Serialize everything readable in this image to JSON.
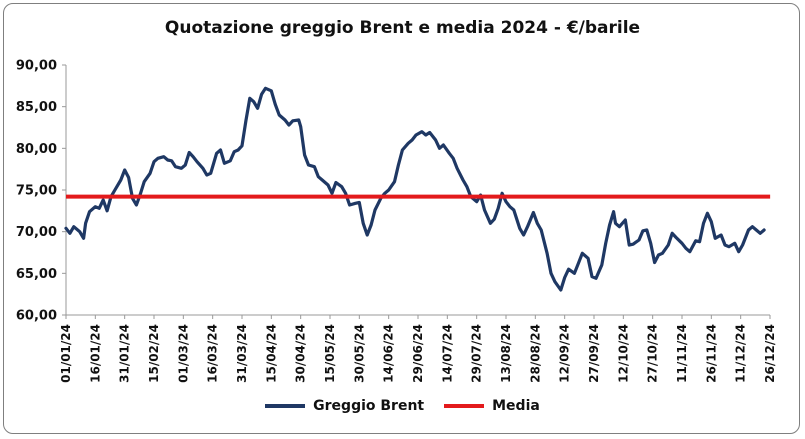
{
  "chart_data": {
    "type": "line",
    "title": "Quotazione greggio Brent e media 2024 - €/barile",
    "ylim": [
      60,
      90
    ],
    "yticks": [
      "60,00",
      "65,00",
      "70,00",
      "75,00",
      "80,00",
      "85,00",
      "90,00"
    ],
    "xticks": [
      "01/01/24",
      "16/01/24",
      "31/01/24",
      "15/02/24",
      "01/03/24",
      "16/03/24",
      "31/03/24",
      "15/04/24",
      "30/04/24",
      "15/05/24",
      "30/05/24",
      "14/06/24",
      "29/06/24",
      "14/07/24",
      "29/07/24",
      "13/08/24",
      "28/08/24",
      "12/09/24",
      "27/09/24",
      "12/10/24",
      "27/10/24",
      "11/11/24",
      "26/11/24",
      "11/12/24",
      "26/12/24"
    ],
    "series": [
      {
        "name": "Greggio Brent",
        "color": "#1f3864",
        "points": [
          [
            "01/01/24",
            70.4
          ],
          [
            "03/01/24",
            69.8
          ],
          [
            "05/01/24",
            70.6
          ],
          [
            "08/01/24",
            70.0
          ],
          [
            "10/01/24",
            69.2
          ],
          [
            "11/01/24",
            71.0
          ],
          [
            "13/01/24",
            72.4
          ],
          [
            "16/01/24",
            73.0
          ],
          [
            "18/01/24",
            72.8
          ],
          [
            "20/01/24",
            73.8
          ],
          [
            "22/01/24",
            72.5
          ],
          [
            "24/01/24",
            74.2
          ],
          [
            "26/01/24",
            75.0
          ],
          [
            "29/01/24",
            76.2
          ],
          [
            "31/01/24",
            77.4
          ],
          [
            "02/02/24",
            76.5
          ],
          [
            "04/02/24",
            74.0
          ],
          [
            "06/02/24",
            73.2
          ],
          [
            "08/02/24",
            74.5
          ],
          [
            "10/02/24",
            76.0
          ],
          [
            "13/02/24",
            77.0
          ],
          [
            "15/02/24",
            78.4
          ],
          [
            "17/02/24",
            78.8
          ],
          [
            "20/02/24",
            79.0
          ],
          [
            "22/02/24",
            78.6
          ],
          [
            "24/02/24",
            78.5
          ],
          [
            "26/02/24",
            77.8
          ],
          [
            "29/02/24",
            77.6
          ],
          [
            "02/03/24",
            78.0
          ],
          [
            "04/03/24",
            79.5
          ],
          [
            "06/03/24",
            79.0
          ],
          [
            "08/03/24",
            78.4
          ],
          [
            "11/03/24",
            77.6
          ],
          [
            "13/03/24",
            76.8
          ],
          [
            "15/03/24",
            77.0
          ],
          [
            "18/03/24",
            79.4
          ],
          [
            "20/03/24",
            79.8
          ],
          [
            "22/03/24",
            78.2
          ],
          [
            "25/03/24",
            78.5
          ],
          [
            "27/03/24",
            79.6
          ],
          [
            "29/03/24",
            79.8
          ],
          [
            "31/03/24",
            80.3
          ],
          [
            "02/04/24",
            83.3
          ],
          [
            "04/04/24",
            86.0
          ],
          [
            "06/04/24",
            85.6
          ],
          [
            "08/04/24",
            84.8
          ],
          [
            "10/04/24",
            86.5
          ],
          [
            "12/04/24",
            87.2
          ],
          [
            "15/04/24",
            86.9
          ],
          [
            "17/04/24",
            85.3
          ],
          [
            "19/04/24",
            84.0
          ],
          [
            "22/04/24",
            83.4
          ],
          [
            "24/04/24",
            82.8
          ],
          [
            "26/04/24",
            83.3
          ],
          [
            "29/04/24",
            83.4
          ],
          [
            "30/04/24",
            82.6
          ],
          [
            "02/05/24",
            79.2
          ],
          [
            "04/05/24",
            78.0
          ],
          [
            "07/05/24",
            77.8
          ],
          [
            "09/05/24",
            76.6
          ],
          [
            "11/05/24",
            76.2
          ],
          [
            "14/05/24",
            75.6
          ],
          [
            "16/05/24",
            74.6
          ],
          [
            "18/05/24",
            75.9
          ],
          [
            "21/05/24",
            75.4
          ],
          [
            "23/05/24",
            74.6
          ],
          [
            "25/05/24",
            73.2
          ],
          [
            "28/05/24",
            73.4
          ],
          [
            "30/05/24",
            73.5
          ],
          [
            "01/06/24",
            71.0
          ],
          [
            "03/06/24",
            69.6
          ],
          [
            "05/06/24",
            70.8
          ],
          [
            "07/06/24",
            72.6
          ],
          [
            "10/06/24",
            74.0
          ],
          [
            "12/06/24",
            74.6
          ],
          [
            "14/06/24",
            75.0
          ],
          [
            "17/06/24",
            76.0
          ],
          [
            "19/06/24",
            78.0
          ],
          [
            "21/06/24",
            79.8
          ],
          [
            "24/06/24",
            80.6
          ],
          [
            "26/06/24",
            81.0
          ],
          [
            "28/06/24",
            81.6
          ],
          [
            "01/07/24",
            82.0
          ],
          [
            "03/07/24",
            81.6
          ],
          [
            "05/07/24",
            81.9
          ],
          [
            "08/07/24",
            81.0
          ],
          [
            "10/07/24",
            80.0
          ],
          [
            "12/07/24",
            80.4
          ],
          [
            "15/07/24",
            79.4
          ],
          [
            "17/07/24",
            78.8
          ],
          [
            "19/07/24",
            77.6
          ],
          [
            "22/07/24",
            76.2
          ],
          [
            "24/07/24",
            75.4
          ],
          [
            "26/07/24",
            74.2
          ],
          [
            "29/07/24",
            73.6
          ],
          [
            "31/07/24",
            74.4
          ],
          [
            "02/08/24",
            72.6
          ],
          [
            "05/08/24",
            71.0
          ],
          [
            "07/08/24",
            71.5
          ],
          [
            "09/08/24",
            72.8
          ],
          [
            "11/08/24",
            74.6
          ],
          [
            "13/08/24",
            73.6
          ],
          [
            "15/08/24",
            73.0
          ],
          [
            "17/08/24",
            72.6
          ],
          [
            "20/08/24",
            70.4
          ],
          [
            "22/08/24",
            69.6
          ],
          [
            "24/08/24",
            70.6
          ],
          [
            "27/08/24",
            72.3
          ],
          [
            "29/08/24",
            71.0
          ],
          [
            "31/08/24",
            70.2
          ],
          [
            "03/09/24",
            67.4
          ],
          [
            "05/09/24",
            65.0
          ],
          [
            "07/09/24",
            64.0
          ],
          [
            "10/09/24",
            63.0
          ],
          [
            "12/09/24",
            64.5
          ],
          [
            "14/09/24",
            65.5
          ],
          [
            "17/09/24",
            65.0
          ],
          [
            "19/09/24",
            66.2
          ],
          [
            "21/09/24",
            67.4
          ],
          [
            "24/09/24",
            66.8
          ],
          [
            "26/09/24",
            64.6
          ],
          [
            "28/09/24",
            64.4
          ],
          [
            "01/10/24",
            66.0
          ],
          [
            "03/10/24",
            68.6
          ],
          [
            "05/10/24",
            70.8
          ],
          [
            "07/10/24",
            72.4
          ],
          [
            "08/10/24",
            71.0
          ],
          [
            "10/10/24",
            70.6
          ],
          [
            "13/10/24",
            71.4
          ],
          [
            "15/10/24",
            68.4
          ],
          [
            "17/10/24",
            68.5
          ],
          [
            "20/10/24",
            69.0
          ],
          [
            "22/10/24",
            70.1
          ],
          [
            "24/10/24",
            70.2
          ],
          [
            "26/10/24",
            68.6
          ],
          [
            "28/10/24",
            66.3
          ],
          [
            "30/10/24",
            67.2
          ],
          [
            "01/11/24",
            67.4
          ],
          [
            "04/11/24",
            68.4
          ],
          [
            "06/11/24",
            69.8
          ],
          [
            "08/11/24",
            69.3
          ],
          [
            "11/11/24",
            68.6
          ],
          [
            "13/11/24",
            68.0
          ],
          [
            "15/11/24",
            67.6
          ],
          [
            "18/11/24",
            68.9
          ],
          [
            "20/11/24",
            68.8
          ],
          [
            "22/11/24",
            71.0
          ],
          [
            "24/11/24",
            72.2
          ],
          [
            "26/11/24",
            71.2
          ],
          [
            "28/11/24",
            69.2
          ],
          [
            "01/12/24",
            69.6
          ],
          [
            "03/12/24",
            68.4
          ],
          [
            "05/12/24",
            68.2
          ],
          [
            "08/12/24",
            68.6
          ],
          [
            "10/12/24",
            67.6
          ],
          [
            "12/12/24",
            68.4
          ],
          [
            "15/12/24",
            70.2
          ],
          [
            "17/12/24",
            70.6
          ],
          [
            "19/12/24",
            70.2
          ],
          [
            "21/12/24",
            69.8
          ],
          [
            "23/12/24",
            70.2
          ]
        ]
      },
      {
        "name": "Media",
        "color": "#e31a1c",
        "value": 74.2
      }
    ],
    "legend": "bottom",
    "grid": false
  }
}
